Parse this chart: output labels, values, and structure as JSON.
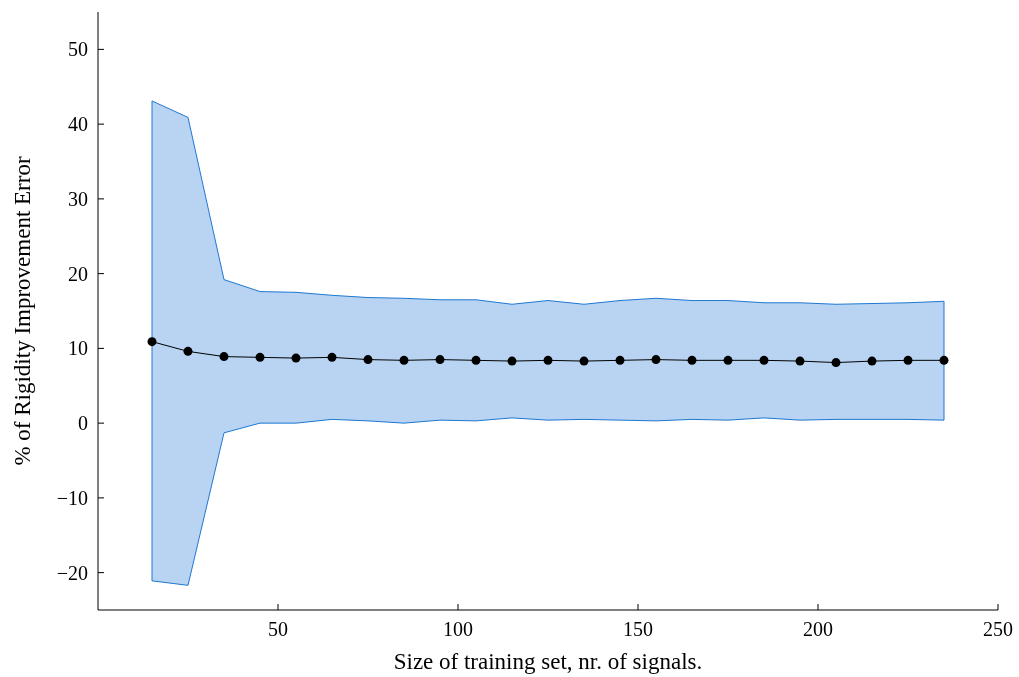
{
  "chart_data": {
    "type": "line",
    "xlabel": "Size of training set, nr. of signals.",
    "ylabel": "% of Rigidity Improvement Error",
    "x": [
      15,
      25,
      35,
      45,
      55,
      65,
      75,
      85,
      95,
      105,
      115,
      125,
      135,
      145,
      155,
      165,
      175,
      185,
      195,
      205,
      215,
      225,
      235
    ],
    "series": [
      {
        "color": "#000000",
        "values": [
          10.9,
          9.6,
          8.9,
          8.8,
          8.7,
          8.8,
          8.5,
          8.4,
          8.5,
          8.4,
          8.3,
          8.4,
          8.3,
          8.4,
          8.5,
          8.4,
          8.4,
          8.4,
          8.3,
          8.1,
          8.3,
          8.4,
          8.4
        ],
        "lower": [
          -21.1,
          -21.7,
          -1.3,
          0,
          0,
          0.5,
          0.3,
          0,
          0.4,
          0.3,
          0.7,
          0.4,
          0.5,
          0.4,
          0.3,
          0.5,
          0.4,
          0.7,
          0.4,
          0.5,
          0.5,
          0.5,
          0.4
        ],
        "upper": [
          43.1,
          40.9,
          19.2,
          17.6,
          17.5,
          17.1,
          16.8,
          16.7,
          16.5,
          16.5,
          15.9,
          16.4,
          15.9,
          16.4,
          16.7,
          16.4,
          16.4,
          16.1,
          16.1,
          15.9,
          16.0,
          16.1,
          16.3
        ]
      }
    ],
    "xlim": [
      0,
      250
    ],
    "xticks": [
      50,
      100,
      150,
      200,
      250
    ],
    "ylim": [
      -25,
      55
    ],
    "yticks": [
      {
        "value": -20,
        "label": "−20"
      },
      {
        "value": -10,
        "label": "−10"
      },
      0,
      10,
      20,
      30,
      40,
      50
    ],
    "marker": "circle",
    "line_style": "solid"
  }
}
